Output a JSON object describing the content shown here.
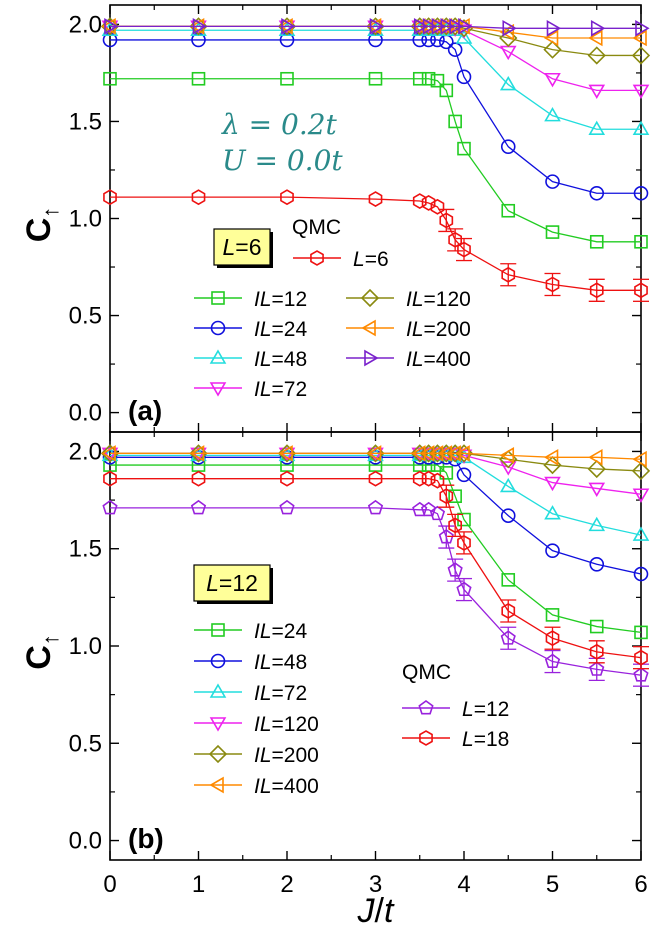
{
  "chart_data": [
    {
      "panel": "(a)",
      "type": "line",
      "xlabel": "J/t",
      "ylabel": "C↑",
      "xlim": [
        0,
        6
      ],
      "ylim": [
        -0.1,
        2.1
      ],
      "xticks": [
        "0",
        "1",
        "2",
        "3",
        "4",
        "5",
        "6"
      ],
      "yticks": [
        "0.0",
        "0.5",
        "1.0",
        "1.5",
        "2.0"
      ],
      "box_label": "L=6",
      "qmc_label": "QMC",
      "annotation": [
        "λ = 0.2t",
        "U = 0.0t"
      ],
      "annotation_color": "#2a8a8a",
      "series": [
        {
          "name": "IL=12",
          "color": "#22cc22",
          "marker": "square",
          "x": [
            0,
            1,
            2,
            3,
            3.5,
            3.6,
            3.7,
            3.8,
            3.9,
            4.0,
            4.5,
            5.0,
            5.5,
            6.0
          ],
          "values": [
            1.72,
            1.72,
            1.72,
            1.72,
            1.72,
            1.72,
            1.71,
            1.66,
            1.5,
            1.36,
            1.04,
            0.93,
            0.88,
            0.88
          ]
        },
        {
          "name": "IL=24",
          "color": "#1010dd",
          "marker": "circle",
          "x": [
            0,
            1,
            2,
            3,
            3.5,
            3.6,
            3.7,
            3.8,
            3.9,
            4.0,
            4.5,
            5.0,
            5.5,
            6.0
          ],
          "values": [
            1.92,
            1.92,
            1.92,
            1.92,
            1.92,
            1.92,
            1.92,
            1.91,
            1.87,
            1.73,
            1.37,
            1.19,
            1.13,
            1.13
          ]
        },
        {
          "name": "IL=48",
          "color": "#22dddd",
          "marker": "triangle-up",
          "x": [
            0,
            1,
            2,
            3,
            3.5,
            3.6,
            3.7,
            3.8,
            3.9,
            4.0,
            4.5,
            5.0,
            5.5,
            6.0
          ],
          "values": [
            1.97,
            1.97,
            1.97,
            1.97,
            1.97,
            1.97,
            1.97,
            1.97,
            1.97,
            1.93,
            1.69,
            1.53,
            1.46,
            1.46
          ]
        },
        {
          "name": "IL=72",
          "color": "#ee22ee",
          "marker": "triangle-down",
          "x": [
            0,
            1,
            2,
            3,
            3.5,
            3.6,
            3.7,
            3.8,
            3.9,
            4.0,
            4.5,
            5.0,
            5.5,
            6.0
          ],
          "values": [
            1.99,
            1.99,
            1.99,
            1.99,
            1.99,
            1.99,
            1.99,
            1.99,
            1.98,
            1.97,
            1.86,
            1.72,
            1.66,
            1.66
          ]
        },
        {
          "name": "IL=120",
          "color": "#8a8a10",
          "marker": "diamond",
          "x": [
            0,
            1,
            2,
            3,
            3.5,
            3.6,
            3.7,
            3.8,
            3.9,
            4.0,
            4.5,
            5.0,
            5.5,
            6.0
          ],
          "values": [
            1.99,
            1.99,
            1.99,
            1.99,
            1.99,
            1.99,
            1.99,
            1.99,
            1.99,
            1.98,
            1.93,
            1.87,
            1.84,
            1.84
          ]
        },
        {
          "name": "IL=200",
          "color": "#ff8a00",
          "marker": "triangle-left",
          "x": [
            0,
            1,
            2,
            3,
            3.5,
            3.6,
            3.7,
            3.8,
            3.9,
            4.0,
            4.5,
            5.0,
            5.5,
            6.0
          ],
          "values": [
            1.99,
            1.99,
            1.99,
            1.99,
            1.99,
            1.99,
            1.99,
            1.99,
            1.99,
            1.99,
            1.96,
            1.93,
            1.93,
            1.93
          ]
        },
        {
          "name": "IL=400",
          "color": "#7a22cc",
          "marker": "triangle-right",
          "x": [
            0,
            1,
            2,
            3,
            3.5,
            3.6,
            3.7,
            3.8,
            3.9,
            4.0,
            4.5,
            5.0,
            5.5,
            6.0
          ],
          "values": [
            1.99,
            1.99,
            1.99,
            1.99,
            1.99,
            1.99,
            1.99,
            1.99,
            1.99,
            1.99,
            1.98,
            1.98,
            1.98,
            1.98
          ]
        },
        {
          "name": "L=6",
          "color": "#ee1111",
          "marker": "hexagon",
          "errorbars": true,
          "x": [
            0,
            1,
            2,
            3,
            3.5,
            3.6,
            3.7,
            3.8,
            3.9,
            4.0,
            4.5,
            5.0,
            5.5,
            6.0
          ],
          "values": [
            1.11,
            1.11,
            1.11,
            1.1,
            1.09,
            1.08,
            1.06,
            0.99,
            0.89,
            0.84,
            0.71,
            0.66,
            0.63,
            0.63
          ]
        }
      ]
    },
    {
      "panel": "(b)",
      "type": "line",
      "xlabel": "J/t",
      "ylabel": "C↑",
      "xlim": [
        0,
        6
      ],
      "ylim": [
        -0.1,
        2.1
      ],
      "xticks": [
        "0",
        "1",
        "2",
        "3",
        "4",
        "5",
        "6"
      ],
      "yticks": [
        "0.0",
        "0.5",
        "1.0",
        "1.5",
        "2.0"
      ],
      "box_label": "L=12",
      "qmc_label": "QMC",
      "series": [
        {
          "name": "IL=24",
          "color": "#22cc22",
          "marker": "square",
          "x": [
            0,
            1,
            2,
            3,
            3.5,
            3.6,
            3.7,
            3.8,
            3.9,
            4.0,
            4.5,
            5.0,
            5.5,
            6.0
          ],
          "values": [
            1.93,
            1.93,
            1.93,
            1.93,
            1.93,
            1.93,
            1.93,
            1.89,
            1.77,
            1.65,
            1.34,
            1.16,
            1.1,
            1.07
          ]
        },
        {
          "name": "IL=48",
          "color": "#1010dd",
          "marker": "circle",
          "x": [
            0,
            1,
            2,
            3,
            3.5,
            3.6,
            3.7,
            3.8,
            3.9,
            4.0,
            4.5,
            5.0,
            5.5,
            6.0
          ],
          "values": [
            1.97,
            1.97,
            1.97,
            1.97,
            1.97,
            1.97,
            1.97,
            1.97,
            1.96,
            1.88,
            1.67,
            1.49,
            1.42,
            1.37
          ]
        },
        {
          "name": "IL=72",
          "color": "#22dddd",
          "marker": "triangle-up",
          "x": [
            0,
            1,
            2,
            3,
            3.5,
            3.6,
            3.7,
            3.8,
            3.9,
            4.0,
            4.5,
            5.0,
            5.5,
            6.0
          ],
          "values": [
            1.98,
            1.98,
            1.98,
            1.98,
            1.98,
            1.98,
            1.98,
            1.98,
            1.98,
            1.97,
            1.82,
            1.68,
            1.62,
            1.57
          ]
        },
        {
          "name": "IL=120",
          "color": "#ee22ee",
          "marker": "triangle-down",
          "x": [
            0,
            1,
            2,
            3,
            3.5,
            3.6,
            3.7,
            3.8,
            3.9,
            4.0,
            4.5,
            5.0,
            5.5,
            6.0
          ],
          "values": [
            1.99,
            1.99,
            1.99,
            1.99,
            1.99,
            1.99,
            1.99,
            1.99,
            1.99,
            1.98,
            1.92,
            1.84,
            1.81,
            1.78
          ]
        },
        {
          "name": "IL=200",
          "color": "#8a8a10",
          "marker": "diamond",
          "x": [
            0,
            1,
            2,
            3,
            3.5,
            3.6,
            3.7,
            3.8,
            3.9,
            4.0,
            4.5,
            5.0,
            5.5,
            6.0
          ],
          "values": [
            1.99,
            1.99,
            1.99,
            1.99,
            1.99,
            1.99,
            1.99,
            1.99,
            1.99,
            1.99,
            1.96,
            1.93,
            1.91,
            1.9
          ]
        },
        {
          "name": "IL=400",
          "color": "#ff8a00",
          "marker": "triangle-left",
          "x": [
            0,
            1,
            2,
            3,
            3.5,
            3.6,
            3.7,
            3.8,
            3.9,
            4.0,
            4.5,
            5.0,
            5.5,
            6.0
          ],
          "values": [
            1.99,
            1.99,
            1.99,
            1.99,
            1.99,
            1.99,
            1.99,
            1.99,
            1.99,
            1.99,
            1.98,
            1.97,
            1.97,
            1.96
          ]
        },
        {
          "name": "L=12",
          "color": "#9922dd",
          "marker": "pentagon",
          "errorbars": true,
          "x": [
            0,
            1,
            2,
            3,
            3.5,
            3.6,
            3.7,
            3.8,
            3.9,
            4.0,
            4.5,
            5.0,
            5.5,
            6.0
          ],
          "values": [
            1.71,
            1.71,
            1.71,
            1.71,
            1.7,
            1.7,
            1.68,
            1.56,
            1.39,
            1.29,
            1.04,
            0.92,
            0.88,
            0.85
          ]
        },
        {
          "name": "L=18",
          "color": "#ee1111",
          "marker": "hexagon",
          "errorbars": true,
          "x": [
            0,
            1,
            2,
            3,
            3.5,
            3.6,
            3.7,
            3.8,
            3.9,
            4.0,
            4.5,
            5.0,
            5.5,
            6.0
          ],
          "values": [
            1.86,
            1.86,
            1.86,
            1.86,
            1.86,
            1.86,
            1.85,
            1.77,
            1.62,
            1.53,
            1.18,
            1.04,
            0.97,
            0.94
          ]
        }
      ]
    }
  ]
}
